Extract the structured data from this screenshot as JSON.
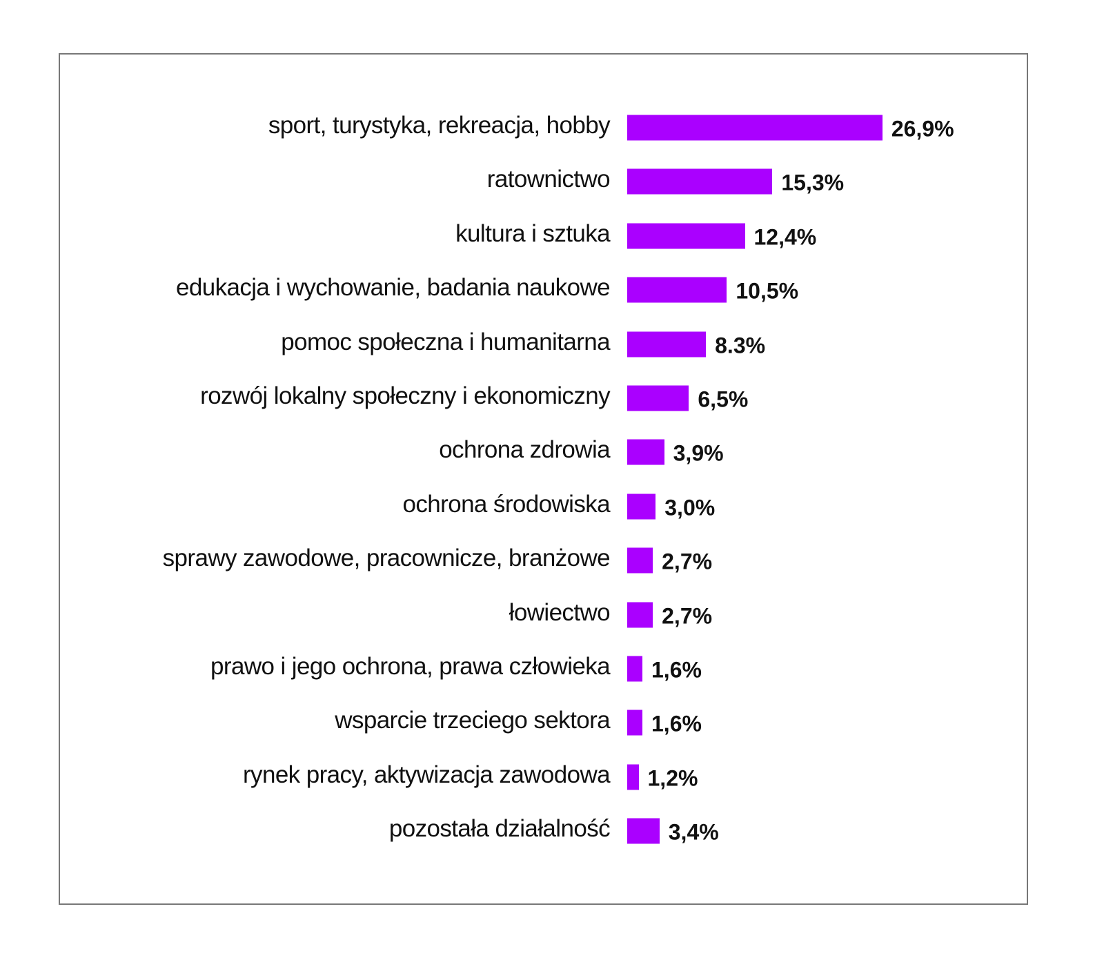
{
  "chart_data": {
    "type": "bar",
    "orientation": "horizontal",
    "title": "",
    "xlabel": "",
    "ylabel": "",
    "grid": false,
    "legend": null,
    "bar_color": "#AA00FF",
    "categories": [
      "sport, turystyka, rekreacja, hobby",
      "ratownictwo",
      "kultura i sztuka",
      "edukacja i wychowanie, badania naukowe",
      "pomoc społeczna i humanitarna",
      "rozwój lokalny społeczny i ekonomiczny",
      "ochrona zdrowia",
      "ochrona środowiska",
      "sprawy zawodowe, pracownicze, branżowe",
      "łowiectwo",
      "prawo i jego ochrona, prawa człowieka",
      "wsparcie trzeciego sektora",
      "rynek pracy, aktywizacja zawodowa",
      "pozostała działalność"
    ],
    "values": [
      26.9,
      15.3,
      12.4,
      10.5,
      8.3,
      6.5,
      3.9,
      3.0,
      2.7,
      2.7,
      1.6,
      1.6,
      1.2,
      3.4
    ],
    "value_labels": [
      "26,9%",
      "15,3%",
      "12,4%",
      "10,5%",
      "8.3%",
      "6,5%",
      "3,9%",
      "3,0%",
      "2,7%",
      "2,7%",
      "1,6%",
      "1,6%",
      "1,2%",
      "3,4%"
    ],
    "unit": "%",
    "xlim": [
      0,
      30
    ]
  },
  "rows": [
    {
      "label": "sport, turystyka, rekreacja, hobby",
      "value": "26,9%"
    },
    {
      "label": "ratownictwo",
      "value": "15,3%"
    },
    {
      "label": "kultura i sztuka",
      "value": "12,4%"
    },
    {
      "label": "edukacja i wychowanie, badania naukowe",
      "value": "10,5%"
    },
    {
      "label": "pomoc społeczna i humanitarna",
      "value": "8.3%"
    },
    {
      "label": "rozwój lokalny społeczny i ekonomiczny",
      "value": "6,5%"
    },
    {
      "label": "ochrona zdrowia",
      "value": "3,9%"
    },
    {
      "label": "ochrona środowiska",
      "value": "3,0%"
    },
    {
      "label": "sprawy zawodowe, pracownicze, branżowe",
      "value": "2,7%"
    },
    {
      "label": "łowiectwo",
      "value": "2,7%"
    },
    {
      "label": "prawo i jego ochrona, prawa człowieka",
      "value": "1,6%"
    },
    {
      "label": "wsparcie trzeciego sektora",
      "value": "1,6%"
    },
    {
      "label": "rynek pracy, aktywizacja zawodowa",
      "value": "1,2%"
    },
    {
      "label": "pozostała działalność",
      "value": "3,4%"
    }
  ]
}
